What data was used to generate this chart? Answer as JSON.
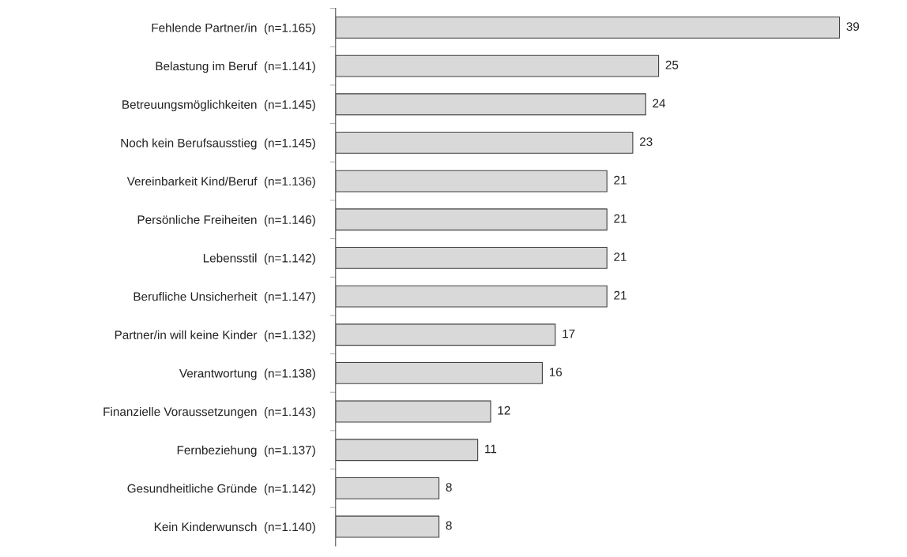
{
  "chart_data": {
    "type": "bar",
    "orientation": "horizontal",
    "categories": [
      "Fehlende Partner/in  (n=1.165)",
      "Belastung im Beruf  (n=1.141)",
      "Betreuungsmöglichkeiten  (n=1.145)",
      "Noch kein Berufsausstieg  (n=1.145)",
      "Vereinbarkeit Kind/Beruf  (n=1.136)",
      "Persönliche Freiheiten  (n=1.146)",
      "Lebensstil  (n=1.142)",
      "Berufliche Unsicherheit  (n=1.147)",
      "Partner/in will keine Kinder  (n=1.132)",
      "Verantwortung  (n=1.138)",
      "Finanzielle Voraussetzungen  (n=1.143)",
      "Fernbeziehung  (n=1.137)",
      "Gesundheitliche Gründe  (n=1.142)",
      "Kein Kinderwunsch  (n=1.140)"
    ],
    "values": [
      39,
      25,
      24,
      23,
      21,
      21,
      21,
      21,
      17,
      16,
      12,
      11,
      8,
      8
    ],
    "color": "#d9d9d9",
    "data_labels": true,
    "grid": false,
    "legend": false
  }
}
